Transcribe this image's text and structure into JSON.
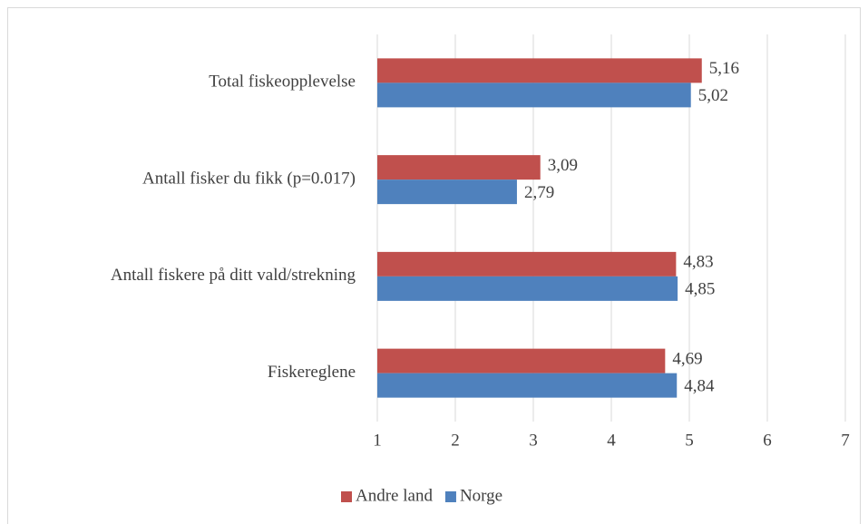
{
  "chart_data": {
    "type": "barh",
    "categories": [
      "Total fiskeopplevelse",
      "Antall fisker du fikk (p=0.017)",
      "Antall fiskere på ditt vald/strekning",
      "Fiskereglene"
    ],
    "series": [
      {
        "name": "Andre land",
        "color": "#c0504d",
        "values": [
          5.16,
          3.09,
          4.83,
          4.69
        ],
        "value_labels": [
          "5,16",
          "3,09",
          "4,83",
          "4,69"
        ]
      },
      {
        "name": "Norge",
        "color": "#4f81bd",
        "values": [
          5.02,
          2.79,
          4.85,
          4.84
        ],
        "value_labels": [
          "5,02",
          "2,79",
          "4,85",
          "4,84"
        ]
      }
    ],
    "xlim": [
      1,
      7
    ],
    "xticks": [
      1,
      2,
      3,
      4,
      5,
      6,
      7
    ],
    "grid": true,
    "legend": "bottom"
  }
}
